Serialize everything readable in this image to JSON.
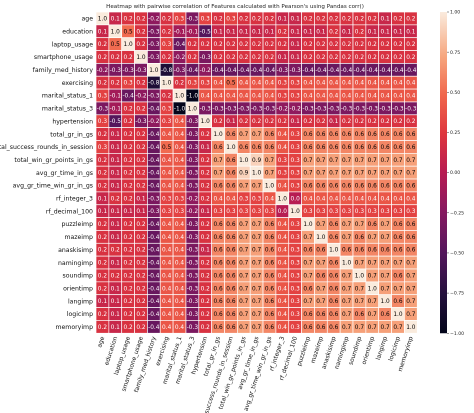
{
  "chart_data": {
    "type": "heatmap",
    "title": "Heatmap with pairwise correlation of Features calculated with Pearson's using Pandas corr()",
    "labels": [
      "age",
      "education",
      "laptop_usage",
      "smartphone_usage",
      "family_med_history",
      "exercising",
      "marital_status_1",
      "marital_status_3",
      "hypertension",
      "total_gr_in_gs",
      "total_success_rounds_in_session",
      "total_win_gr_points_in_gs",
      "avg_gr_time_in_gs",
      "avg_gr_time_win_gr_in_gs",
      "rf_integer_3",
      "rf_decimal_100",
      "puzzleimp",
      "mazeimp",
      "anaskisimp",
      "namingimp",
      "soundimp",
      "orientimp",
      "langimp",
      "logicimp",
      "memoryimp"
    ],
    "matrix": [
      [
        1.0,
        0.1,
        0.2,
        0.2,
        -0.2,
        0.2,
        0.3,
        -0.3,
        0.3,
        0.2,
        0.3,
        0.2,
        0.2,
        0.2,
        0.1,
        0.1,
        0.2,
        0.2,
        0.2,
        0.2,
        0.2,
        0.2,
        0.1,
        0.2,
        0.2
      ],
      [
        0.1,
        1.0,
        0.5,
        0.2,
        -0.3,
        0.2,
        -0.1,
        -0.1,
        -0.5,
        0.1,
        0.1,
        0.1,
        0.1,
        0.1,
        0.2,
        0.1,
        0.1,
        0.1,
        0.2,
        0.1,
        0.2,
        0.1,
        0.1,
        0.1,
        0.1
      ],
      [
        0.2,
        0.5,
        1.0,
        0.2,
        -0.3,
        0.3,
        -0.4,
        0.2,
        0.2,
        0.2,
        0.2,
        0.2,
        0.2,
        0.2,
        0.2,
        0.1,
        0.2,
        0.2,
        0.2,
        0.2,
        0.2,
        0.2,
        0.2,
        0.2,
        0.2
      ],
      [
        0.2,
        0.2,
        0.2,
        1.0,
        -0.3,
        0.2,
        -0.2,
        0.2,
        -0.3,
        0.2,
        0.2,
        0.2,
        0.2,
        0.2,
        0.1,
        0.1,
        0.2,
        0.2,
        0.2,
        0.2,
        0.2,
        0.2,
        0.2,
        0.2,
        0.2
      ],
      [
        -0.2,
        -0.3,
        -0.3,
        -0.3,
        1.0,
        -0.8,
        -0.3,
        -0.4,
        -0.2,
        -0.4,
        -0.4,
        -0.4,
        -0.4,
        -0.4,
        -0.3,
        -0.3,
        -0.4,
        -0.4,
        -0.4,
        -0.4,
        -0.4,
        -0.4,
        -0.4,
        -0.4,
        -0.4
      ],
      [
        0.2,
        0.2,
        0.3,
        0.2,
        -0.8,
        1.0,
        0.2,
        0.3,
        0.3,
        0.4,
        0.5,
        0.4,
        0.4,
        0.4,
        0.3,
        0.3,
        0.4,
        0.4,
        0.4,
        0.4,
        0.4,
        0.4,
        0.4,
        0.4,
        0.4
      ],
      [
        0.3,
        -0.1,
        -0.4,
        -0.2,
        -0.3,
        0.2,
        1.0,
        -1.0,
        0.4,
        0.4,
        0.4,
        0.4,
        0.4,
        0.4,
        0.3,
        0.3,
        0.4,
        0.4,
        0.4,
        0.4,
        0.4,
        0.4,
        0.4,
        0.4,
        0.4
      ],
      [
        -0.3,
        -0.1,
        0.2,
        0.2,
        -0.4,
        0.3,
        -1.0,
        1.0,
        -0.3,
        -0.3,
        -0.3,
        -0.3,
        -0.3,
        -0.3,
        -0.2,
        -0.2,
        -0.3,
        -0.3,
        -0.3,
        -0.3,
        -0.3,
        -0.3,
        -0.3,
        -0.3,
        -0.3
      ],
      [
        0.3,
        -0.5,
        0.2,
        -0.3,
        -0.2,
        0.3,
        0.4,
        -0.3,
        1.0,
        0.2,
        0.1,
        0.2,
        0.2,
        0.2,
        0.2,
        0.1,
        0.2,
        0.2,
        0.1,
        0.2,
        0.2,
        0.2,
        0.2,
        0.2,
        0.2
      ],
      [
        0.2,
        0.1,
        0.2,
        0.2,
        -0.4,
        0.4,
        0.4,
        -0.3,
        0.2,
        1.0,
        0.6,
        0.7,
        0.7,
        0.6,
        0.4,
        0.3,
        0.6,
        0.6,
        0.6,
        0.6,
        0.6,
        0.6,
        0.6,
        0.6,
        0.6
      ],
      [
        0.3,
        0.1,
        0.2,
        0.2,
        -0.4,
        0.5,
        0.4,
        -0.3,
        0.1,
        0.6,
        1.0,
        0.6,
        0.6,
        0.6,
        0.4,
        0.3,
        0.6,
        0.6,
        0.6,
        0.6,
        0.6,
        0.6,
        0.6,
        0.6,
        0.6
      ],
      [
        0.2,
        0.1,
        0.2,
        0.2,
        -0.4,
        0.4,
        0.4,
        -0.3,
        0.2,
        0.7,
        0.6,
        1.0,
        0.9,
        0.7,
        0.3,
        0.3,
        0.7,
        0.7,
        0.7,
        0.7,
        0.7,
        0.7,
        0.7,
        0.7,
        0.7
      ],
      [
        0.2,
        0.1,
        0.2,
        0.2,
        -0.4,
        0.4,
        0.4,
        -0.3,
        0.2,
        0.7,
        0.6,
        0.9,
        1.0,
        0.7,
        0.3,
        0.3,
        0.7,
        0.7,
        0.7,
        0.7,
        0.7,
        0.7,
        0.7,
        0.7,
        0.7
      ],
      [
        0.2,
        0.1,
        0.2,
        0.2,
        -0.4,
        0.4,
        0.4,
        -0.3,
        0.2,
        0.6,
        0.6,
        0.7,
        0.7,
        1.0,
        0.4,
        0.3,
        0.6,
        0.6,
        0.6,
        0.6,
        0.6,
        0.6,
        0.6,
        0.6,
        0.6
      ],
      [
        0.1,
        0.2,
        0.2,
        0.1,
        -0.3,
        0.3,
        0.3,
        -0.2,
        0.2,
        0.4,
        0.4,
        0.3,
        0.3,
        0.4,
        1.0,
        0.0,
        0.4,
        0.4,
        0.4,
        0.4,
        0.4,
        0.4,
        0.4,
        0.4,
        0.4
      ],
      [
        0.1,
        0.1,
        0.1,
        0.1,
        -0.3,
        0.3,
        0.3,
        -0.2,
        0.1,
        0.3,
        0.3,
        0.3,
        0.3,
        0.3,
        0.0,
        1.0,
        0.3,
        0.3,
        0.3,
        0.3,
        0.3,
        0.3,
        0.3,
        0.3,
        0.3
      ],
      [
        0.2,
        0.1,
        0.2,
        0.2,
        -0.4,
        0.4,
        0.4,
        -0.3,
        0.2,
        0.6,
        0.6,
        0.7,
        0.7,
        0.6,
        0.4,
        0.3,
        1.0,
        0.7,
        0.6,
        0.7,
        0.7,
        0.6,
        0.7,
        0.6,
        0.6
      ],
      [
        0.2,
        0.1,
        0.2,
        0.2,
        -0.4,
        0.4,
        0.4,
        -0.3,
        0.2,
        0.6,
        0.6,
        0.7,
        0.7,
        0.6,
        0.4,
        0.3,
        0.7,
        1.0,
        0.6,
        0.7,
        0.6,
        0.7,
        0.7,
        0.6,
        0.6
      ],
      [
        0.2,
        0.2,
        0.2,
        0.2,
        -0.4,
        0.4,
        0.4,
        -0.3,
        0.1,
        0.6,
        0.6,
        0.7,
        0.7,
        0.6,
        0.4,
        0.3,
        0.6,
        0.6,
        1.0,
        0.6,
        0.6,
        0.6,
        0.6,
        0.6,
        0.6
      ],
      [
        0.2,
        0.1,
        0.2,
        0.2,
        -0.4,
        0.4,
        0.4,
        -0.3,
        0.2,
        0.6,
        0.6,
        0.7,
        0.7,
        0.6,
        0.4,
        0.3,
        0.7,
        0.7,
        0.6,
        1.0,
        0.7,
        0.7,
        0.7,
        0.7,
        0.7
      ],
      [
        0.2,
        0.2,
        0.2,
        0.2,
        -0.4,
        0.4,
        0.4,
        -0.3,
        0.2,
        0.6,
        0.6,
        0.7,
        0.7,
        0.6,
        0.4,
        0.3,
        0.7,
        0.6,
        0.6,
        0.7,
        1.0,
        0.7,
        0.7,
        0.6,
        0.7
      ],
      [
        0.2,
        0.1,
        0.2,
        0.2,
        -0.4,
        0.4,
        0.4,
        -0.3,
        0.2,
        0.6,
        0.6,
        0.7,
        0.7,
        0.6,
        0.4,
        0.3,
        0.6,
        0.7,
        0.6,
        0.7,
        0.7,
        1.0,
        0.7,
        0.7,
        0.7
      ],
      [
        0.1,
        0.1,
        0.2,
        0.2,
        -0.4,
        0.4,
        0.4,
        -0.3,
        0.2,
        0.6,
        0.6,
        0.7,
        0.7,
        0.6,
        0.4,
        0.3,
        0.7,
        0.7,
        0.6,
        0.7,
        0.7,
        0.7,
        1.0,
        0.6,
        0.7
      ],
      [
        0.2,
        0.1,
        0.2,
        0.2,
        -0.4,
        0.4,
        0.4,
        -0.3,
        0.2,
        0.6,
        0.6,
        0.7,
        0.7,
        0.6,
        0.4,
        0.3,
        0.6,
        0.6,
        0.6,
        0.7,
        0.6,
        0.7,
        0.6,
        1.0,
        0.7
      ],
      [
        0.2,
        0.1,
        0.2,
        0.2,
        -0.4,
        0.4,
        0.4,
        -0.3,
        0.2,
        0.6,
        0.6,
        0.7,
        0.7,
        0.6,
        0.4,
        0.3,
        0.6,
        0.6,
        0.6,
        0.7,
        0.7,
        0.7,
        0.7,
        0.7,
        1.0
      ]
    ],
    "colorbar": {
      "ticks": [
        1.0,
        0.75,
        0.5,
        0.25,
        0.0,
        -0.25,
        -0.5,
        -0.75,
        -1.0
      ],
      "range": [
        -1.0,
        1.0
      ],
      "colormap": "rocket"
    },
    "annotations": true,
    "grid": true
  },
  "colors": {
    "cell_gridline": "#ffffff",
    "background": "#ffffff"
  }
}
